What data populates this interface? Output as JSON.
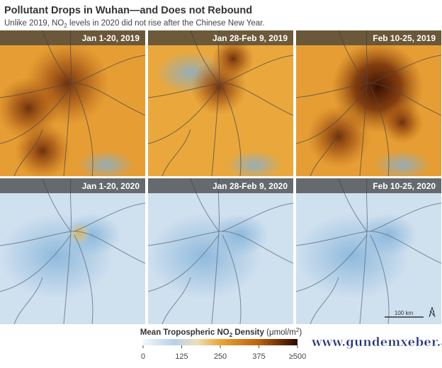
{
  "header": {
    "title": "Pollutant Drops in Wuhan—and Does not Rebound",
    "subtitle": [
      "Unlike 2019, NO",
      "2",
      " levels in 2020 did not rise after the Chinese New Year."
    ]
  },
  "panels": [
    {
      "label": "Jan 1-20, 2019"
    },
    {
      "label": "Jan 28-Feb 9, 2019"
    },
    {
      "label": "Feb 10-25, 2019"
    },
    {
      "label": "Jan 1-20, 2020"
    },
    {
      "label": "Jan 28-Feb 9, 2020"
    },
    {
      "label": "Feb 10-25, 2020"
    }
  ],
  "scale_bar": "100 km",
  "north": "N",
  "colorbar": {
    "title": [
      "Mean Tropospheric NO",
      "2",
      " Density ",
      "(μmol/m",
      "2",
      ")"
    ],
    "lim": [
      0,
      500
    ],
    "ticks": [
      0,
      125,
      250,
      375,
      {
        "value": 500,
        "label": "≥500"
      }
    ]
  },
  "watermark": "www.gundemxeber.az"
}
